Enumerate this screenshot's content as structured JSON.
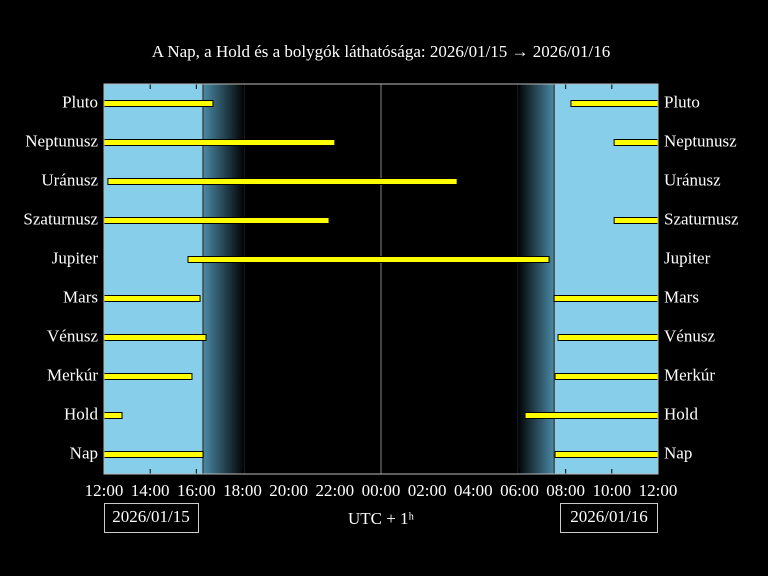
{
  "chart_data": {
    "type": "timeline",
    "title": "A Nap, a Hold és a bolygók láthatósága: 2026/01/15 → 2026/01/16",
    "xlabel": "UTC + 1ʰ",
    "start_date": "2026/01/15",
    "end_date": "2026/01/16",
    "xlim": [
      0,
      24
    ],
    "xticks": [
      {
        "value": 0,
        "label": "12:00"
      },
      {
        "value": 2,
        "label": "14:00"
      },
      {
        "value": 4,
        "label": "16:00"
      },
      {
        "value": 6,
        "label": "18:00"
      },
      {
        "value": 8,
        "label": "20:00"
      },
      {
        "value": 10,
        "label": "22:00"
      },
      {
        "value": 12,
        "label": "00:00"
      },
      {
        "value": 14,
        "label": "02:00"
      },
      {
        "value": 16,
        "label": "04:00"
      },
      {
        "value": 18,
        "label": "06:00"
      },
      {
        "value": 20,
        "label": "08:00"
      },
      {
        "value": 22,
        "label": "10:00"
      },
      {
        "value": 24,
        "label": "12:00"
      }
    ],
    "categories": [
      "Nap",
      "Hold",
      "Merkúr",
      "Vénusz",
      "Mars",
      "Jupiter",
      "Szaturnusz",
      "Uránusz",
      "Neptunusz",
      "Pluto"
    ],
    "ranges": [
      [
        [
          0,
          4.29
        ],
        [
          19.54,
          24
        ]
      ],
      [
        [
          0,
          0.78
        ],
        [
          18.24,
          24
        ]
      ],
      [
        [
          0,
          3.81
        ],
        [
          19.54,
          24
        ]
      ],
      [
        [
          0,
          4.42
        ],
        [
          19.67,
          24
        ]
      ],
      [
        [
          0,
          4.16
        ],
        [
          19.5,
          24
        ]
      ],
      [
        [
          3.64,
          19.28
        ]
      ],
      [
        [
          0,
          9.75
        ],
        [
          22.1,
          24
        ]
      ],
      [
        [
          0.17,
          15.3
        ]
      ],
      [
        [
          0,
          10.0
        ],
        [
          22.1,
          24
        ]
      ],
      [
        [
          0,
          4.72
        ],
        [
          20.23,
          24
        ]
      ]
    ],
    "night": {
      "sunset": 4.29,
      "dark": 6.1,
      "dawn": 17.9,
      "sunrise": 19.5
    },
    "bar_color": "#ffff00",
    "day_color": "#87ceeb",
    "night_color": "#000000"
  }
}
